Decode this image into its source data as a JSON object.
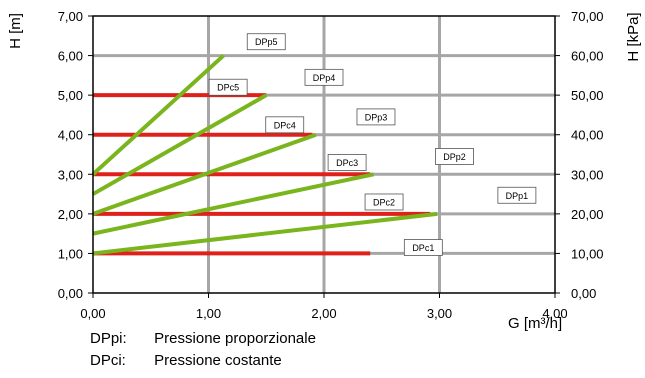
{
  "chart_data": {
    "type": "line",
    "xlabel": "G [m³/h]",
    "ylabel_left": "H [m]",
    "ylabel_right": "H [kPa]",
    "xlim": [
      0,
      4
    ],
    "ylim_left": [
      0,
      7
    ],
    "ylim_right": [
      0,
      70
    ],
    "grid": true,
    "x_ticks": [
      "0,00",
      "1,00",
      "2,00",
      "3,00",
      "4,00"
    ],
    "y_ticks_left": [
      "0,00",
      "1,00",
      "2,00",
      "3,00",
      "4,00",
      "5,00",
      "6,00",
      "7,00"
    ],
    "y_ticks_right": [
      "0,00",
      "10,00",
      "20,00",
      "30,00",
      "40,00",
      "50,00",
      "60,00",
      "70,00"
    ],
    "colors": {
      "proportional": "#7ab51d",
      "constant": "#e0201b",
      "grid": "#a6a6a6"
    },
    "series_proportional": [
      {
        "name": "DPp1",
        "x": [
          0,
          2.98
        ],
        "y": [
          1.0,
          2.0
        ]
      },
      {
        "name": "DPp2",
        "x": [
          0,
          2.43
        ],
        "y": [
          1.5,
          3.0
        ]
      },
      {
        "name": "DPp3",
        "x": [
          0,
          1.93
        ],
        "y": [
          2.0,
          4.0
        ]
      },
      {
        "name": "DPp4",
        "x": [
          0,
          1.5
        ],
        "y": [
          2.5,
          5.0
        ]
      },
      {
        "name": "DPp5",
        "x": [
          0,
          1.13
        ],
        "y": [
          3.0,
          6.0
        ]
      }
    ],
    "series_constant": [
      {
        "name": "DPc1",
        "x": [
          0,
          2.4
        ],
        "y": [
          1.0,
          1.0
        ]
      },
      {
        "name": "DPc2",
        "x": [
          0,
          2.92
        ],
        "y": [
          2.0,
          2.0
        ]
      },
      {
        "name": "DPc3",
        "x": [
          0,
          2.4
        ],
        "y": [
          3.0,
          3.0
        ]
      },
      {
        "name": "DPc4",
        "x": [
          0,
          1.9
        ],
        "y": [
          4.0,
          4.0
        ]
      },
      {
        "name": "DPc5",
        "x": [
          0,
          1.5
        ],
        "y": [
          5.0,
          5.0
        ]
      }
    ],
    "box_labels": [
      {
        "text": "DPp5",
        "x": 1.5,
        "y": 6.35
      },
      {
        "text": "DPp4",
        "x": 2.0,
        "y": 5.45
      },
      {
        "text": "DPc5",
        "x": 1.17,
        "y": 5.2
      },
      {
        "text": "DPp3",
        "x": 2.45,
        "y": 4.45
      },
      {
        "text": "DPc4",
        "x": 1.66,
        "y": 4.25
      },
      {
        "text": "DPp2",
        "x": 3.13,
        "y": 3.45
      },
      {
        "text": "DPc3",
        "x": 2.2,
        "y": 3.3
      },
      {
        "text": "DPp1",
        "x": 3.67,
        "y": 2.47
      },
      {
        "text": "DPc2",
        "x": 2.52,
        "y": 2.3
      },
      {
        "text": "DPc1",
        "x": 2.86,
        "y": 1.15
      }
    ]
  },
  "legend": [
    {
      "code": "DPpi:",
      "desc": "Pressione proporzionale"
    },
    {
      "code": "DPci:",
      "desc": "Pressione costante"
    }
  ]
}
